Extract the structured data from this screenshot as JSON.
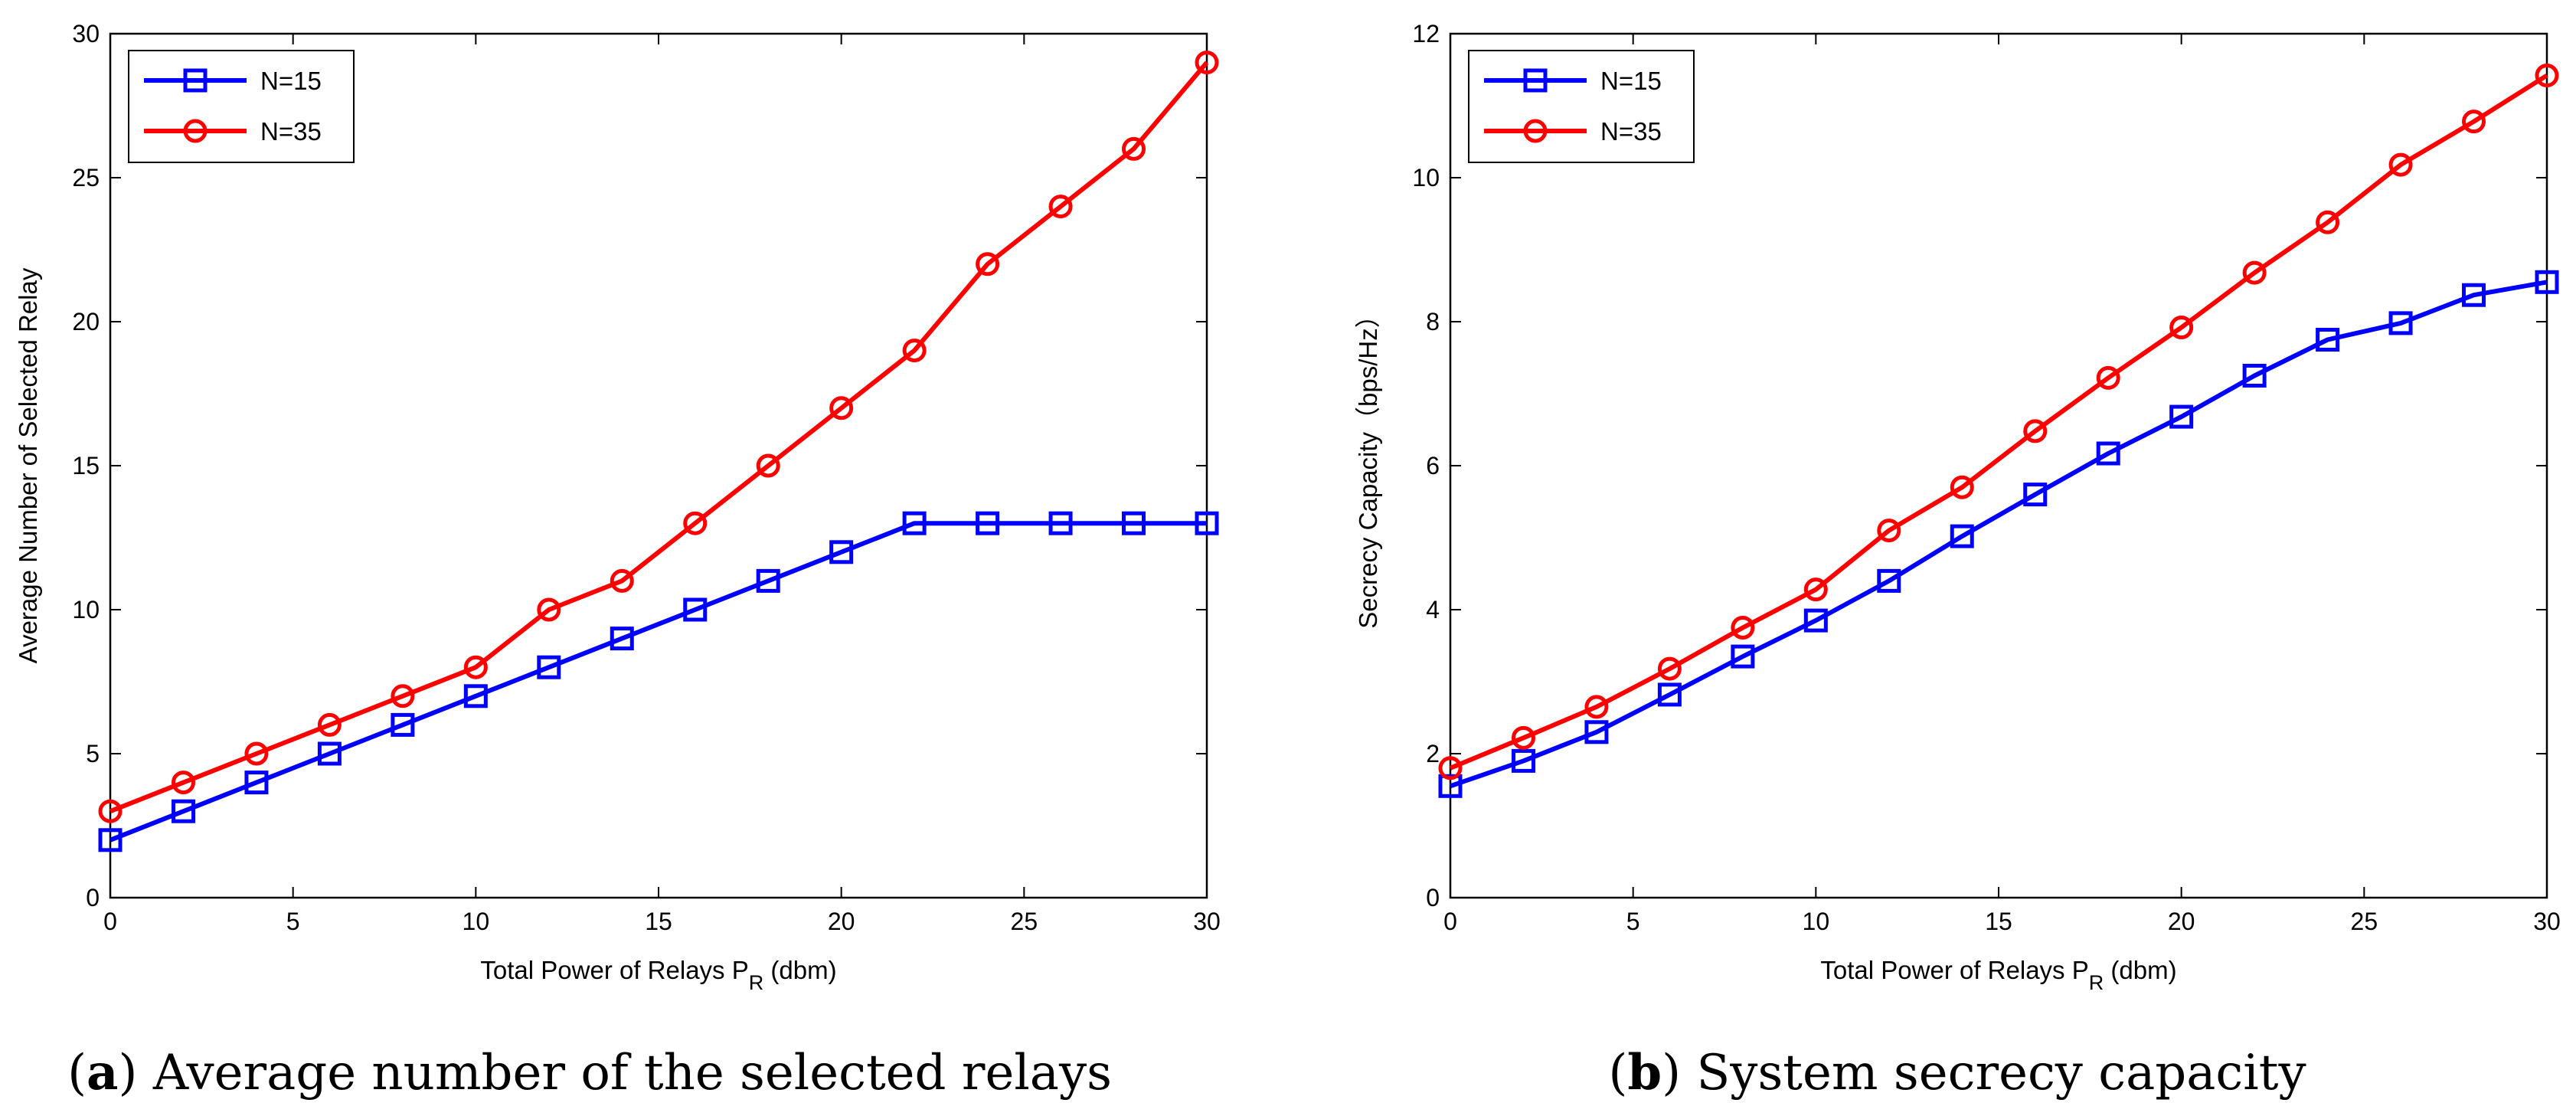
{
  "chart_data": [
    {
      "type": "line",
      "panel": "a",
      "caption_letter": "a",
      "caption_text": "Average number of the selected relays",
      "xlabel": "Total Power of Relays P",
      "xlabel_sub": "R",
      "xlabel_unit": " (dbm)",
      "ylabel": "Average Number of Selected Relay",
      "xlim": [
        0,
        30
      ],
      "ylim": [
        0,
        30
      ],
      "xticks": [
        0,
        5,
        10,
        15,
        20,
        25,
        30
      ],
      "yticks": [
        0,
        5,
        10,
        15,
        20,
        25,
        30
      ],
      "legend_position": "top-left",
      "x": [
        0,
        2,
        4,
        6,
        8,
        10,
        12,
        14,
        16,
        18,
        20,
        22,
        24,
        26,
        28,
        30
      ],
      "series": [
        {
          "name": "N=15",
          "color": "#0000ff",
          "marker": "square",
          "values": [
            2,
            3,
            4,
            5,
            6,
            7,
            8,
            9,
            10,
            11,
            12,
            13,
            13,
            13,
            13,
            13
          ]
        },
        {
          "name": "N=35",
          "color": "#ff0000",
          "marker": "circle",
          "values": [
            3,
            4,
            5,
            6,
            7,
            8,
            10,
            11,
            13,
            15,
            17,
            19,
            22,
            24,
            26,
            29
          ]
        }
      ]
    },
    {
      "type": "line",
      "panel": "b",
      "caption_letter": "b",
      "caption_text": "System secrecy capacity",
      "xlabel": "Total Power of Relays P",
      "xlabel_sub": "R",
      "xlabel_unit": " (dbm)",
      "ylabel": "Secrecy Capacity（bps/Hz）",
      "xlim": [
        0,
        30
      ],
      "ylim": [
        0,
        12
      ],
      "xticks": [
        0,
        5,
        10,
        15,
        20,
        25,
        30
      ],
      "yticks": [
        0,
        2,
        4,
        6,
        8,
        10,
        12
      ],
      "legend_position": "top-left",
      "x": [
        0,
        2,
        4,
        6,
        8,
        10,
        12,
        14,
        16,
        18,
        20,
        22,
        24,
        26,
        28,
        30
      ],
      "series": [
        {
          "name": "N=15",
          "color": "#0000ff",
          "marker": "square",
          "values": [
            1.55,
            1.9,
            2.3,
            2.82,
            3.35,
            3.85,
            4.4,
            5.02,
            5.6,
            6.17,
            6.68,
            7.25,
            7.75,
            7.98,
            8.37,
            8.55
          ]
        },
        {
          "name": "N=35",
          "color": "#ff0000",
          "marker": "circle",
          "values": [
            1.8,
            2.22,
            2.65,
            3.18,
            3.75,
            4.28,
            5.1,
            5.7,
            6.48,
            7.22,
            7.92,
            8.68,
            9.38,
            10.18,
            10.78,
            11.42
          ]
        }
      ]
    }
  ]
}
